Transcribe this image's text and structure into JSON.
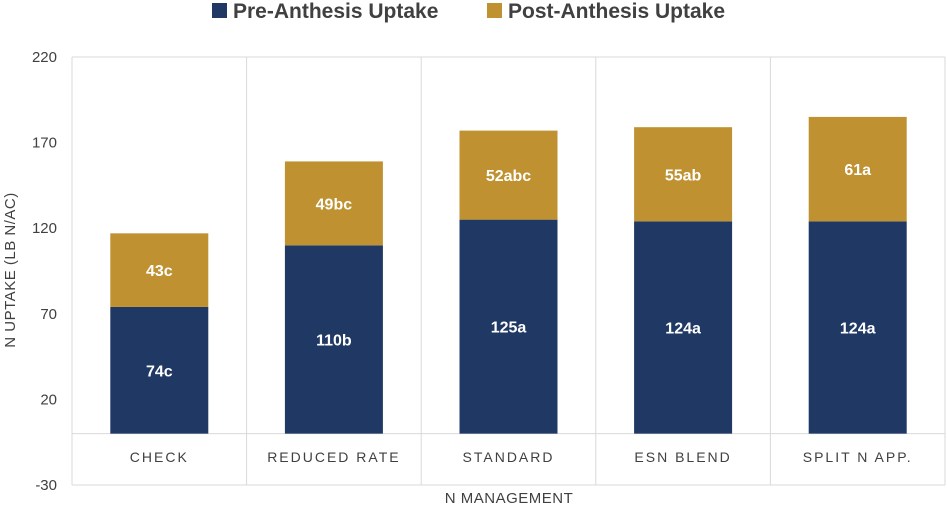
{
  "chart_data": {
    "type": "bar",
    "stacked": true,
    "title": "",
    "xlabel": "N MANAGEMENT",
    "ylabel": "N UPTAKE (LB N/AC)",
    "ylim": [
      -30,
      220
    ],
    "yticks": [
      -30,
      20,
      70,
      120,
      170,
      220
    ],
    "ytick_labels": [
      "-30",
      "20",
      "70",
      "120",
      "170",
      "220"
    ],
    "categories": [
      "CHECK",
      "REDUCED RATE",
      "STANDARD",
      "ESN BLEND",
      "SPLIT N APP."
    ],
    "legend_position": "top",
    "series": [
      {
        "name": "Pre-Anthesis Uptake",
        "color": "#1f3864",
        "values": [
          74,
          110,
          125,
          124,
          124
        ],
        "labels": [
          "74c",
          "110b",
          "125a",
          "124a",
          "124a"
        ]
      },
      {
        "name": "Post-Anthesis Uptake",
        "color": "#bf9130",
        "values": [
          43,
          49,
          52,
          55,
          61
        ],
        "labels": [
          "43c",
          "49bc",
          "52abc",
          "55ab",
          "61a"
        ]
      }
    ]
  }
}
